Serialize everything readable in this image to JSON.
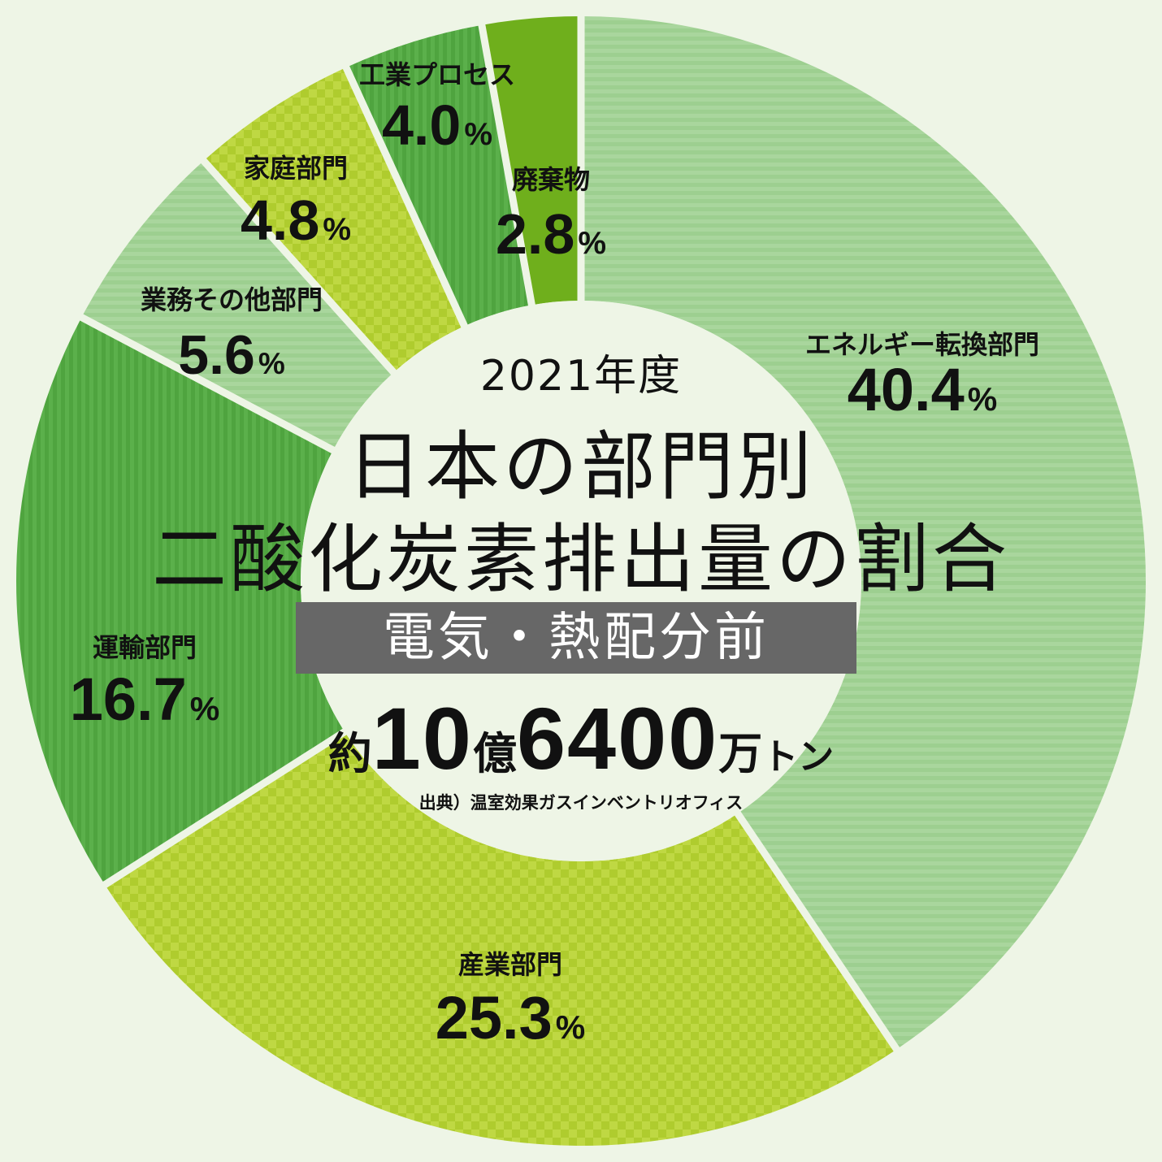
{
  "center": {
    "year": "2021年度",
    "title_line1": "日本の部門別",
    "title_line2": "二酸化炭素排出量の割合",
    "basis": "電気・熱配分前",
    "total_prefix": "約",
    "total_num1": "10",
    "total_unit1": "億",
    "total_num2": "6400",
    "total_unit2": "万",
    "total_unit3": "トン",
    "source": "出典）温室効果ガスインベントリオフィス"
  },
  "colors": {
    "background": "#eef5e6",
    "inner": "#eef5e6",
    "separator": "#eef5e6",
    "band": "#676767"
  },
  "chart_data": {
    "type": "pie",
    "style": "donut",
    "start": "top",
    "direction": "clockwise",
    "categories": [
      "エネルギー転換部門",
      "産業部門",
      "運輸部門",
      "業務その他部門",
      "家庭部門",
      "工業プロセス",
      "廃棄物"
    ],
    "values": [
      40.4,
      25.3,
      16.7,
      5.6,
      4.8,
      4.0,
      2.8
    ],
    "value_labels": [
      "40.4",
      "25.3",
      "16.7",
      "5.6",
      "4.8",
      "4.0",
      "2.8"
    ],
    "unit": "%",
    "slice_colors": [
      "#a6d49a",
      "#bcd53a",
      "#58ad48",
      "#a6d49a",
      "#bcd53a",
      "#58ad48",
      "#6faf1c"
    ],
    "slice_patterns": [
      "hstripe",
      "check",
      "vstripe",
      "hstripe",
      "check",
      "vstripe",
      "solid"
    ]
  }
}
